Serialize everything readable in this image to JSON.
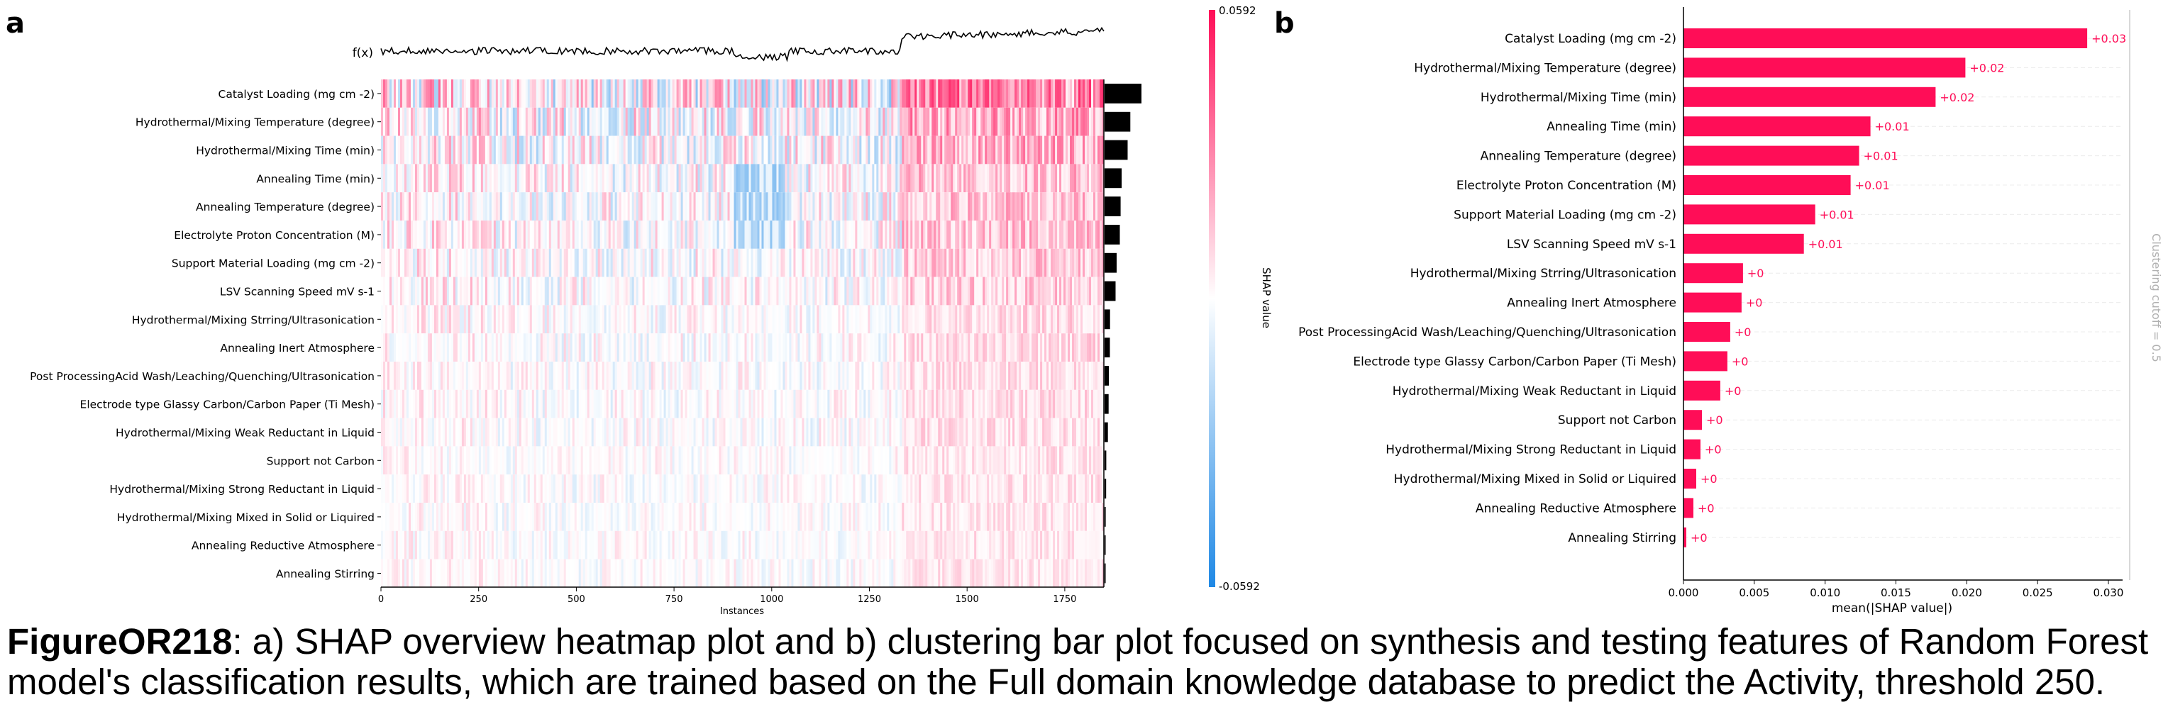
{
  "panel_a_label": "a",
  "panel_b_label": "b",
  "caption": {
    "figure_id": "FigureOR218",
    "text": ": a) SHAP overview heatmap plot and b) clustering bar plot focused on synthesis and testing features of Random Forest model's classification results, which are trained based on the Full domain knowledge database to predict the Activity, threshold 250."
  },
  "colors": {
    "positive": "#ff0d57",
    "negative": "#1e88e5",
    "neutral": "#ffffff",
    "importance_bar": "#000000",
    "text_label": "#ff0d57"
  },
  "chart_data": [
    {
      "type": "heatmap",
      "fx_label": "f(x)",
      "xlabel": "Instances",
      "x_ticks": [
        0,
        250,
        500,
        750,
        1000,
        1250,
        1500,
        1750
      ],
      "x_range": [
        0,
        1850
      ],
      "n_instances": 1850,
      "colorbar": {
        "label": "SHAP value",
        "max": "0.0592",
        "min": "-0.0592",
        "max_value": 0.0592,
        "min_value": -0.0592
      },
      "features": [
        "Catalyst Loading (mg cm -2)",
        "Hydrothermal/Mixing Temperature (degree)",
        "Hydrothermal/Mixing Time (min)",
        "Annealing Time (min)",
        "Annealing Temperature (degree)",
        "Electrolyte Proton Concentration (M)",
        "Support Material Loading (mg cm -2)",
        "LSV Scanning Speed mV s-1",
        "Hydrothermal/Mixing Strring/Ultrasonication",
        "Annealing Inert Atmosphere",
        "Post ProcessingAcid Wash/Leaching/Quenching/Ultrasonication",
        "Electrode type Glassy Carbon/Carbon Paper (Ti Mesh)",
        "Hydrothermal/Mixing Weak Reductant in Liquid",
        "Support not Carbon",
        "Hydrothermal/Mixing Strong Reductant in Liquid",
        "Hydrothermal/Mixing Mixed in Solid or Liquired",
        "Annealing Reductive Atmosphere",
        "Annealing Stirring"
      ],
      "feature_importance": [
        0.0285,
        0.0199,
        0.0178,
        0.0132,
        0.0124,
        0.0118,
        0.0093,
        0.0085,
        0.0042,
        0.0041,
        0.0033,
        0.0031,
        0.0026,
        0.0013,
        0.0012,
        0.0009,
        0.0007,
        0.0002
      ]
    },
    {
      "type": "bar",
      "categories": [
        "Catalyst Loading (mg cm -2)",
        "Hydrothermal/Mixing Temperature (degree)",
        "Hydrothermal/Mixing Time (min)",
        "Annealing Time (min)",
        "Annealing Temperature (degree)",
        "Electrolyte Proton Concentration (M)",
        "Support Material Loading (mg cm -2)",
        "LSV Scanning Speed mV s-1",
        "Hydrothermal/Mixing Strring/Ultrasonication",
        "Annealing Inert Atmosphere",
        "Post ProcessingAcid Wash/Leaching/Quenching/Ultrasonication",
        "Electrode type Glassy Carbon/Carbon Paper (Ti Mesh)",
        "Hydrothermal/Mixing Weak Reductant in Liquid",
        "Support not Carbon",
        "Hydrothermal/Mixing Strong Reductant in Liquid",
        "Hydrothermal/Mixing Mixed in Solid or Liquired",
        "Annealing Reductive Atmosphere",
        "Annealing Stirring"
      ],
      "values": [
        0.0285,
        0.0199,
        0.0178,
        0.0132,
        0.0124,
        0.0118,
        0.0093,
        0.0085,
        0.0042,
        0.0041,
        0.0033,
        0.0031,
        0.0026,
        0.0013,
        0.0012,
        0.0009,
        0.0007,
        0.0002
      ],
      "value_labels": [
        "+0.03",
        "+0.02",
        "+0.02",
        "+0.01",
        "+0.01",
        "+0.01",
        "+0.01",
        "+0.01",
        "+0",
        "+0",
        "+0",
        "+0",
        "+0",
        "+0",
        "+0",
        "+0",
        "+0",
        "+0"
      ],
      "xlabel": "mean(|SHAP value|)",
      "x_ticks": [
        "0.000",
        "0.005",
        "0.010",
        "0.015",
        "0.020",
        "0.025",
        "0.030"
      ],
      "xlim": [
        0,
        0.031
      ],
      "side_label": "Clustering cutoff = 0.5"
    }
  ]
}
